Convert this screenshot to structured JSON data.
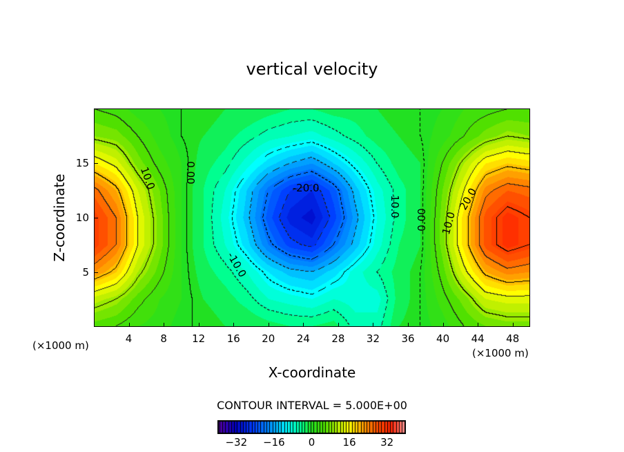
{
  "chart_data": {
    "type": "heatmap",
    "subtype": "filled-contour",
    "title": "vertical velocity",
    "xlabel": "X-coordinate",
    "ylabel": "Z-coordinate",
    "x_unit_left": "(×1000 m)",
    "x_unit_right": "(×1000 m)",
    "xlim": [
      0,
      50
    ],
    "ylim": [
      0,
      20
    ],
    "xticks": [
      4,
      8,
      12,
      16,
      20,
      24,
      28,
      32,
      36,
      40,
      44,
      48
    ],
    "yticks": [
      5,
      10,
      15
    ],
    "grid_x": [
      0,
      2.5,
      5,
      7.5,
      10,
      12.5,
      15,
      17.5,
      20,
      22.5,
      25,
      27.5,
      30,
      32.5,
      35,
      37.5,
      40,
      42.5,
      45,
      47.5,
      50
    ],
    "grid_z": [
      20,
      17.5,
      15,
      12.5,
      10,
      7.5,
      5,
      2.5,
      0
    ],
    "values": [
      [
        5,
        4,
        2,
        1,
        0,
        0,
        -1,
        -1,
        -2,
        -3,
        -3,
        -2,
        -2,
        -1,
        0,
        0,
        1,
        3,
        4,
        5,
        5
      ],
      [
        9,
        8,
        5,
        2,
        0,
        -1,
        -2,
        -4,
        -6,
        -7,
        -8,
        -6,
        -4,
        -2,
        -1,
        0,
        2,
        5,
        8,
        10,
        9
      ],
      [
        17,
        14,
        8,
        4,
        1,
        -2,
        -4,
        -8,
        -12,
        -15,
        -17,
        -13,
        -9,
        -5,
        -2,
        -1,
        5,
        11,
        17,
        19,
        18
      ],
      [
        26,
        21,
        13,
        7,
        1,
        -3,
        -7,
        -13,
        -20,
        -25,
        -27,
        -22,
        -14,
        -8,
        -4,
        -1,
        7,
        15,
        24,
        27,
        26
      ],
      [
        30,
        25,
        15,
        8,
        1,
        -3,
        -8,
        -14,
        -22,
        -28,
        -30,
        -24,
        -16,
        -9,
        -4,
        -1,
        8,
        18,
        28,
        32,
        30
      ],
      [
        30,
        25,
        15,
        8,
        1,
        -3,
        -7,
        -12,
        -19,
        -24,
        -26,
        -20,
        -14,
        -8,
        -3,
        -1,
        8,
        18,
        28,
        32,
        30
      ],
      [
        23,
        19,
        11,
        6,
        1,
        -2,
        -4,
        -7,
        -11,
        -14,
        -15,
        -12,
        -8,
        -5,
        -2,
        0,
        6,
        14,
        21,
        24,
        23
      ],
      [
        12,
        10,
        6,
        3,
        1,
        -1,
        -2,
        -4,
        -7,
        -8,
        -9,
        -7,
        -8,
        -8,
        -2,
        0,
        4,
        8,
        13,
        14,
        14
      ],
      [
        6,
        5,
        3,
        2,
        0,
        0,
        -1,
        -1,
        -2,
        -3,
        -3,
        -2,
        -6,
        -6,
        -1,
        0,
        2,
        5,
        7,
        8,
        8
      ]
    ],
    "contour_interval_text": "CONTOUR INTERVAL = 5.000E+00",
    "contour_interval": 5,
    "contour_labels": [
      {
        "text": "10.0",
        "x": 6.2,
        "z": 13.6,
        "angle": 70
      },
      {
        "text": "0.00",
        "x": 11.1,
        "z": 14.1,
        "angle": 90
      },
      {
        "text": "-20.0",
        "x": 24.3,
        "z": 12.7,
        "angle": 0
      },
      {
        "text": "-10.0",
        "x": 16.4,
        "z": 5.7,
        "angle": 60
      },
      {
        "text": "10.0",
        "x": 34.5,
        "z": 11.0,
        "angle": 90
      },
      {
        "text": "0.00",
        "x": 37.6,
        "z": 9.8,
        "angle": -90
      },
      {
        "text": "10.0",
        "x": 40.7,
        "z": 9.5,
        "angle": -75
      },
      {
        "text": "20.0",
        "x": 42.9,
        "z": 11.7,
        "angle": -60
      }
    ],
    "colorbar": {
      "range": [
        -40,
        40
      ],
      "ticks": [
        -32,
        -16,
        0,
        16,
        32
      ],
      "tick_labels": [
        "−32",
        "−16",
        "0",
        "16",
        "32"
      ],
      "stops": [
        [
          -40,
          "#6000a0"
        ],
        [
          -32,
          "#0000c0"
        ],
        [
          -24,
          "#0040ff"
        ],
        [
          -16,
          "#00a0ff"
        ],
        [
          -10,
          "#00ffff"
        ],
        [
          -4,
          "#00ff90"
        ],
        [
          0,
          "#22e022"
        ],
        [
          6,
          "#50e000"
        ],
        [
          12,
          "#c0f000"
        ],
        [
          16,
          "#ffff00"
        ],
        [
          22,
          "#ffa000"
        ],
        [
          28,
          "#ff5000"
        ],
        [
          34,
          "#ff2000"
        ],
        [
          40,
          "#ff9a9a"
        ]
      ]
    }
  }
}
